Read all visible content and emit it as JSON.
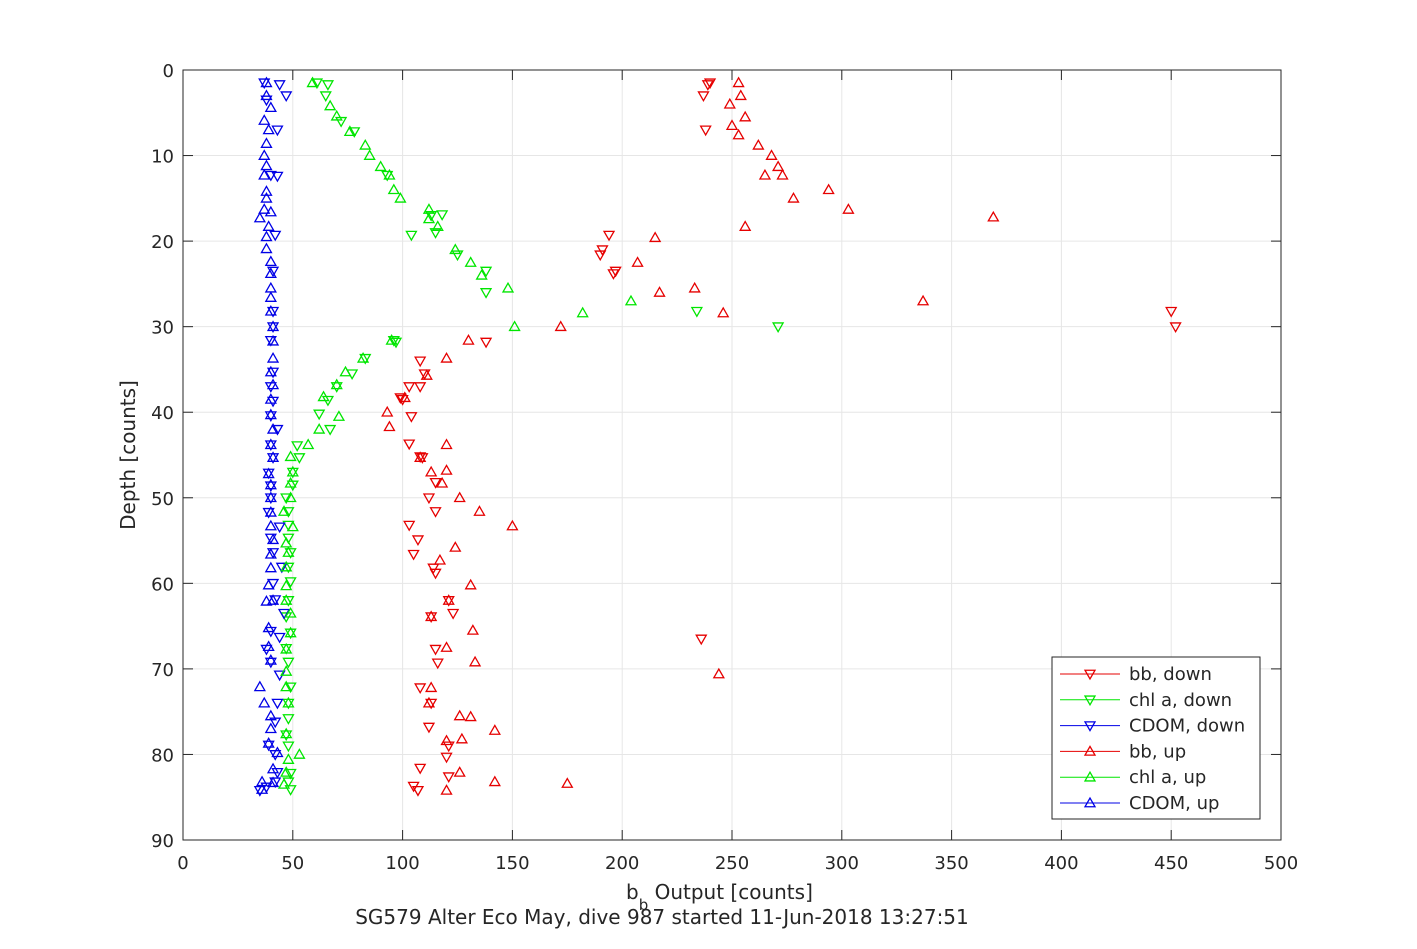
{
  "chart_data": {
    "type": "scatter",
    "title": "SG579 Alter Eco May, dive 987 started 11-Jun-2018 13:27:51",
    "xlabel_main": "b",
    "xlabel_sub": "b",
    "xlabel_rest": " Output [counts]",
    "ylabel": "Depth [counts]",
    "xlim": [
      0,
      500
    ],
    "ylim": [
      0,
      90
    ],
    "y_reversed": true,
    "grid": true,
    "legend_position": "bottom-right",
    "x_ticks": [
      "0",
      "50",
      "100",
      "150",
      "200",
      "250",
      "300",
      "350",
      "400",
      "450",
      "500"
    ],
    "y_ticks": [
      "0",
      "10",
      "20",
      "30",
      "40",
      "50",
      "60",
      "70",
      "80",
      "90"
    ],
    "series": [
      {
        "name": "bb, down",
        "color": "#e60000",
        "marker": "triangle-down",
        "points": [
          [
            240,
            1.5
          ],
          [
            239,
            1.7
          ],
          [
            237,
            3
          ],
          [
            238,
            7
          ],
          [
            194,
            19.3
          ],
          [
            191,
            21
          ],
          [
            190,
            21.6
          ],
          [
            197,
            23.5
          ],
          [
            196,
            23.8
          ],
          [
            450,
            28.2
          ],
          [
            452,
            30
          ],
          [
            138,
            31.8
          ],
          [
            108,
            34
          ],
          [
            110,
            35.5
          ],
          [
            108,
            37
          ],
          [
            103,
            37
          ],
          [
            99,
            38.3
          ],
          [
            100,
            38.5
          ],
          [
            104,
            40.5
          ],
          [
            103,
            43.7
          ],
          [
            108,
            45.2
          ],
          [
            109,
            45.3
          ],
          [
            115,
            48.2
          ],
          [
            112,
            50
          ],
          [
            115,
            51.6
          ],
          [
            103,
            53.2
          ],
          [
            107,
            54.9
          ],
          [
            105,
            56.6
          ],
          [
            114,
            58.2
          ],
          [
            115,
            58.8
          ],
          [
            121,
            62
          ],
          [
            123,
            63.5
          ],
          [
            113,
            63.9
          ],
          [
            236,
            66.5
          ],
          [
            115,
            67.7
          ],
          [
            116,
            69.3
          ],
          [
            108,
            72.2
          ],
          [
            113,
            74
          ],
          [
            112,
            76.8
          ],
          [
            121,
            79
          ],
          [
            120,
            80.3
          ],
          [
            108,
            81.6
          ],
          [
            121,
            82.6
          ],
          [
            105,
            83.7
          ],
          [
            107,
            84.2
          ]
        ]
      },
      {
        "name": "chl a, down",
        "color": "#00e600",
        "marker": "triangle-down",
        "points": [
          [
            61,
            1.5
          ],
          [
            66,
            1.7
          ],
          [
            65,
            3
          ],
          [
            72,
            6
          ],
          [
            78,
            7.2
          ],
          [
            93,
            12.3
          ],
          [
            113,
            17
          ],
          [
            118,
            16.9
          ],
          [
            115,
            19
          ],
          [
            104,
            19.3
          ],
          [
            125,
            21.6
          ],
          [
            138,
            23.5
          ],
          [
            138,
            26
          ],
          [
            234,
            28.2
          ],
          [
            271,
            30
          ],
          [
            96,
            31.6
          ],
          [
            97,
            31.8
          ],
          [
            83,
            33.7
          ],
          [
            77,
            35.5
          ],
          [
            70,
            37
          ],
          [
            66,
            38.6
          ],
          [
            62,
            40.2
          ],
          [
            67,
            42
          ],
          [
            52,
            43.9
          ],
          [
            53,
            45.3
          ],
          [
            50,
            47
          ],
          [
            50,
            48.5
          ],
          [
            47,
            50
          ],
          [
            48,
            51.6
          ],
          [
            48,
            53.2
          ],
          [
            48,
            54.7
          ],
          [
            49,
            56.4
          ],
          [
            48,
            58.1
          ],
          [
            49,
            59.8
          ],
          [
            48,
            62
          ],
          [
            47,
            63.9
          ],
          [
            49,
            65.8
          ],
          [
            47,
            67.6
          ],
          [
            48,
            69.2
          ],
          [
            49,
            72.1
          ],
          [
            48,
            74
          ],
          [
            48,
            75.8
          ],
          [
            47,
            77.7
          ],
          [
            48,
            79
          ],
          [
            49,
            82.2
          ],
          [
            48,
            83.2
          ],
          [
            49,
            84.1
          ]
        ]
      },
      {
        "name": "CDOM, down",
        "color": "#0000e6",
        "marker": "triangle-down",
        "points": [
          [
            37,
            1.5
          ],
          [
            44,
            1.7
          ],
          [
            47,
            3
          ],
          [
            38,
            3.5
          ],
          [
            43,
            7
          ],
          [
            40,
            12.3
          ],
          [
            43,
            12.4
          ],
          [
            42,
            19.3
          ],
          [
            41,
            23.5
          ],
          [
            41,
            28.2
          ],
          [
            41,
            30
          ],
          [
            40,
            31.6
          ],
          [
            41,
            35.3
          ],
          [
            40,
            37
          ],
          [
            41,
            38.7
          ],
          [
            40,
            40.4
          ],
          [
            43,
            42
          ],
          [
            40,
            43.8
          ],
          [
            41,
            45.3
          ],
          [
            39,
            47.1
          ],
          [
            40,
            48.6
          ],
          [
            40,
            50
          ],
          [
            39,
            51.7
          ],
          [
            44,
            53.4
          ],
          [
            40,
            54.7
          ],
          [
            41,
            56.4
          ],
          [
            45,
            58.1
          ],
          [
            41,
            60
          ],
          [
            42,
            61.9
          ],
          [
            46,
            63.5
          ],
          [
            40,
            65.6
          ],
          [
            44,
            66.3
          ],
          [
            38,
            67.7
          ],
          [
            40,
            69.2
          ],
          [
            44,
            70.7
          ],
          [
            43,
            74
          ],
          [
            42,
            76.2
          ],
          [
            39,
            78.9
          ],
          [
            42,
            80
          ],
          [
            43,
            82.1
          ],
          [
            42,
            83.2
          ],
          [
            38,
            83.8
          ],
          [
            35,
            84.2
          ]
        ]
      },
      {
        "name": "bb, up",
        "color": "#e60000",
        "marker": "triangle-up",
        "points": [
          [
            253,
            1.5
          ],
          [
            254,
            3
          ],
          [
            249,
            4
          ],
          [
            256,
            5.5
          ],
          [
            250,
            6.5
          ],
          [
            253,
            7.6
          ],
          [
            262,
            8.8
          ],
          [
            268,
            10
          ],
          [
            271,
            11.3
          ],
          [
            273,
            12.3
          ],
          [
            265,
            12.3
          ],
          [
            278,
            15
          ],
          [
            294,
            14
          ],
          [
            303,
            16.3
          ],
          [
            369,
            17.2
          ],
          [
            256,
            18.3
          ],
          [
            215,
            19.6
          ],
          [
            207,
            22.5
          ],
          [
            217,
            26
          ],
          [
            233,
            25.5
          ],
          [
            246,
            28.4
          ],
          [
            337,
            27
          ],
          [
            172,
            30
          ],
          [
            130,
            31.6
          ],
          [
            120,
            33.7
          ],
          [
            111,
            35.7
          ],
          [
            101,
            38.3
          ],
          [
            93,
            40
          ],
          [
            94,
            41.7
          ],
          [
            120,
            43.8
          ],
          [
            108,
            45.3
          ],
          [
            113,
            47
          ],
          [
            118,
            48.3
          ],
          [
            120,
            46.8
          ],
          [
            126,
            50
          ],
          [
            135,
            51.6
          ],
          [
            150,
            53.3
          ],
          [
            124,
            55.8
          ],
          [
            117,
            57.3
          ],
          [
            131,
            60.2
          ],
          [
            121,
            62
          ],
          [
            113,
            63.9
          ],
          [
            132,
            65.5
          ],
          [
            120,
            67.5
          ],
          [
            133,
            69.2
          ],
          [
            244,
            70.6
          ],
          [
            113,
            72.2
          ],
          [
            112,
            74
          ],
          [
            126,
            75.5
          ],
          [
            131,
            75.6
          ],
          [
            142,
            77.2
          ],
          [
            120,
            78.4
          ],
          [
            127,
            78.2
          ],
          [
            126,
            82.1
          ],
          [
            142,
            83.2
          ],
          [
            175,
            83.4
          ],
          [
            120,
            84.2
          ]
        ]
      },
      {
        "name": "chl a, up",
        "color": "#00e600",
        "marker": "triangle-up",
        "points": [
          [
            59,
            1.5
          ],
          [
            67,
            4.2
          ],
          [
            70,
            5.4
          ],
          [
            76,
            7.2
          ],
          [
            83,
            8.8
          ],
          [
            85,
            10
          ],
          [
            90,
            11.3
          ],
          [
            94,
            12.3
          ],
          [
            96,
            14
          ],
          [
            99,
            15
          ],
          [
            112,
            16.3
          ],
          [
            112,
            17.4
          ],
          [
            116,
            18.3
          ],
          [
            124,
            21
          ],
          [
            131,
            22.5
          ],
          [
            136,
            24
          ],
          [
            148,
            25.5
          ],
          [
            151,
            30
          ],
          [
            182,
            28.4
          ],
          [
            204,
            27
          ],
          [
            95,
            31.6
          ],
          [
            82,
            33.7
          ],
          [
            74,
            35.3
          ],
          [
            70,
            36.8
          ],
          [
            64,
            38.2
          ],
          [
            71,
            40.5
          ],
          [
            62,
            42
          ],
          [
            57,
            43.8
          ],
          [
            49,
            45.2
          ],
          [
            50,
            47
          ],
          [
            49,
            48.3
          ],
          [
            49,
            50
          ],
          [
            46,
            51.6
          ],
          [
            50,
            53.4
          ],
          [
            47,
            55.3
          ],
          [
            48,
            56.4
          ],
          [
            47,
            58.1
          ],
          [
            47,
            60.3
          ],
          [
            47,
            62
          ],
          [
            49,
            63.5
          ],
          [
            49,
            65.8
          ],
          [
            47,
            67.7
          ],
          [
            47,
            70.3
          ],
          [
            47,
            72.1
          ],
          [
            48,
            74
          ],
          [
            47,
            77.6
          ],
          [
            53,
            80
          ],
          [
            48,
            80.6
          ],
          [
            47,
            82.1
          ],
          [
            46,
            83.5
          ]
        ]
      },
      {
        "name": "CDOM, up",
        "color": "#0000e6",
        "marker": "triangle-up",
        "points": [
          [
            38,
            1.5
          ],
          [
            38,
            3
          ],
          [
            40,
            4.4
          ],
          [
            37,
            5.9
          ],
          [
            39,
            7
          ],
          [
            38,
            8.6
          ],
          [
            37,
            10
          ],
          [
            38,
            11.2
          ],
          [
            37,
            12.3
          ],
          [
            38,
            14.2
          ],
          [
            38,
            15
          ],
          [
            37,
            16.3
          ],
          [
            35,
            17.3
          ],
          [
            40,
            16.6
          ],
          [
            39,
            18.3
          ],
          [
            38,
            19.5
          ],
          [
            38,
            20.9
          ],
          [
            40,
            22.4
          ],
          [
            40,
            23.8
          ],
          [
            40,
            25.5
          ],
          [
            40,
            26.6
          ],
          [
            40,
            28.2
          ],
          [
            41,
            30
          ],
          [
            41,
            31.7
          ],
          [
            41,
            33.7
          ],
          [
            40,
            35.3
          ],
          [
            41,
            36.8
          ],
          [
            40,
            38.5
          ],
          [
            40,
            40.3
          ],
          [
            41,
            42
          ],
          [
            40,
            43.8
          ],
          [
            41,
            45.3
          ],
          [
            39,
            47.2
          ],
          [
            40,
            48.5
          ],
          [
            40,
            50
          ],
          [
            40,
            51.7
          ],
          [
            40,
            53.3
          ],
          [
            41,
            54.9
          ],
          [
            40,
            56.6
          ],
          [
            40,
            58.2
          ],
          [
            39,
            60.2
          ],
          [
            41,
            62
          ],
          [
            38,
            62.1
          ],
          [
            39,
            65.2
          ],
          [
            39,
            67.4
          ],
          [
            40,
            69
          ],
          [
            35,
            72.1
          ],
          [
            37,
            74
          ],
          [
            40,
            75.5
          ],
          [
            40,
            77
          ],
          [
            39,
            78.7
          ],
          [
            43,
            79.8
          ],
          [
            41,
            81.7
          ],
          [
            36,
            83.2
          ],
          [
            41,
            83.3
          ],
          [
            36,
            84.1
          ]
        ]
      }
    ]
  }
}
